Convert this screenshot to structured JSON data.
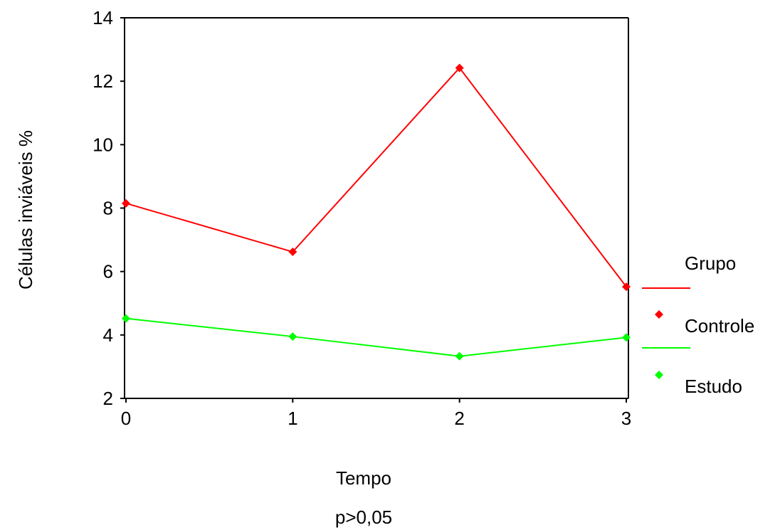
{
  "chart_data": {
    "type": "line",
    "title": "",
    "xlabel": "Tempo",
    "ylabel": "Células inviáveis %",
    "note": "p>0,05",
    "x": [
      0,
      1,
      2,
      3
    ],
    "x_ticks": [
      "0",
      "1",
      "2",
      "3"
    ],
    "xlim": [
      0,
      3
    ],
    "y_ticks": [
      "2",
      "4",
      "6",
      "8",
      "10",
      "12",
      "14"
    ],
    "ylim": [
      2,
      14
    ],
    "grid": false,
    "legend_title": "Grupo",
    "legend_position": "right",
    "series": [
      {
        "name": "Controle",
        "color": "#ff0000",
        "marker": "diamond",
        "values": [
          8.15,
          6.62,
          12.42,
          5.52
        ]
      },
      {
        "name": "Estudo",
        "color": "#00ff00",
        "marker": "diamond",
        "values": [
          4.52,
          3.95,
          3.33,
          3.92
        ]
      }
    ]
  }
}
